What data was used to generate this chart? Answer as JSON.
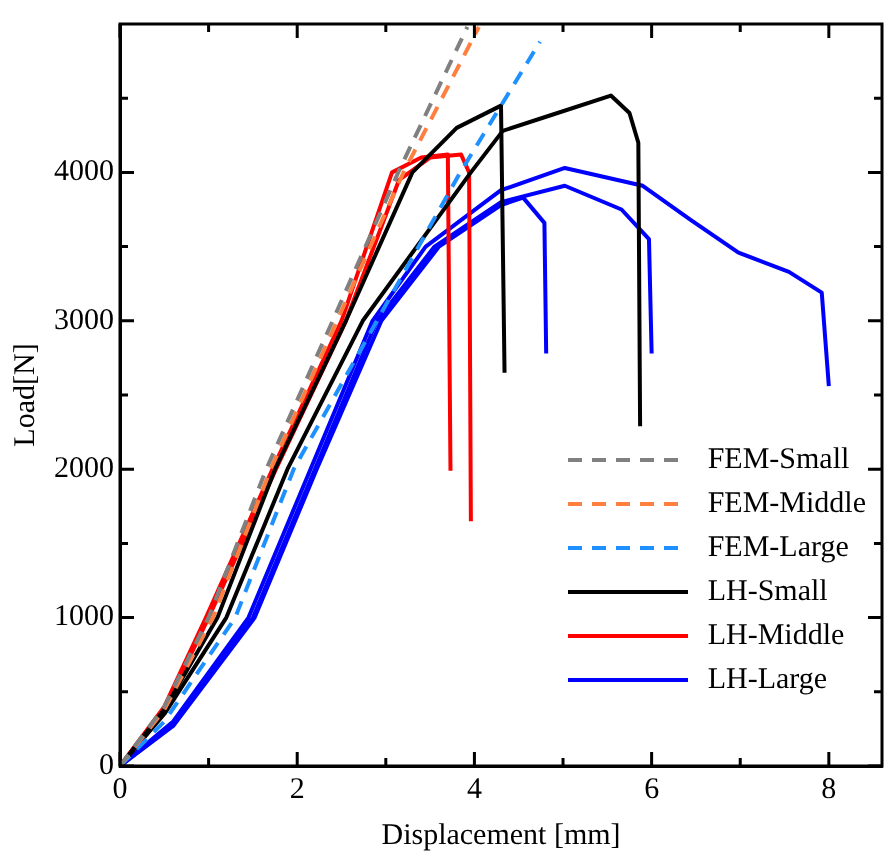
{
  "chart_data": {
    "type": "line",
    "xlabel": "Displacement [mm]",
    "ylabel": "Load[N]",
    "xlim": [
      0,
      8.6
    ],
    "ylim": [
      0,
      5000
    ],
    "xticks": [
      0,
      {
        "value": 1,
        "label": null
      },
      2,
      {
        "value": 3,
        "label": null
      },
      4,
      {
        "value": 5,
        "label": null
      },
      6,
      {
        "value": 7,
        "label": null
      },
      8
    ],
    "yticks": [
      0,
      {
        "value": 500,
        "label": null
      },
      1000,
      {
        "value": 1500,
        "label": null
      },
      2000,
      {
        "value": 2500,
        "label": null
      },
      3000,
      {
        "value": 3500,
        "label": null
      },
      4000,
      {
        "value": 4500,
        "label": null
      }
    ],
    "grid": false,
    "legend": "bottom right",
    "marker": "none",
    "series": [
      {
        "name": "FEM-Small",
        "color": "#808080",
        "line_style": "dashed",
        "x": [
          0,
          0.5,
          1.0,
          1.65,
          2.4,
          3.14,
          3.92
        ],
        "values": [
          0,
          400,
          1000,
          2000,
          3000,
          4000,
          4980
        ]
      },
      {
        "name": "FEM-Middle",
        "color": "#ff7f3f",
        "line_style": "dashed",
        "x": [
          0,
          0.5,
          1.05,
          1.7,
          2.45,
          3.2,
          4.05
        ],
        "values": [
          0,
          380,
          1000,
          2000,
          3000,
          4000,
          4980
        ]
      },
      {
        "name": "FEM-Large",
        "color": "#1e90ff",
        "line_style": "dashed",
        "x": [
          0,
          0.5,
          1.3,
          1.96,
          2.9,
          3.84,
          4.74
        ],
        "values": [
          0,
          300,
          1000,
          2000,
          3000,
          4000,
          4880
        ]
      },
      {
        "name": "LH-Small",
        "color": "#000000",
        "line_style": "solid",
        "x": [
          0,
          0.5,
          1.2,
          1.89,
          2.74,
          3.96,
          4.32,
          4.86,
          5.54,
          5.75,
          5.85,
          5.87
        ],
        "values": [
          0,
          350,
          1000,
          2000,
          3000,
          4000,
          4280,
          4385,
          4518,
          4400,
          4200,
          2290
        ]
      },
      {
        "color": "#000000",
        "line_style": "solid",
        "x": [
          0,
          0.5,
          1.1,
          1.75,
          2.55,
          3.3,
          3.8,
          4.3,
          4.34
        ],
        "values": [
          0,
          380,
          1000,
          2000,
          3000,
          4000,
          4300,
          4450,
          2650
        ]
      },
      {
        "name": "LH-Middle",
        "color": "#ff0000",
        "line_style": "solid",
        "x": [
          0,
          0.5,
          0.97,
          1.72,
          2.5,
          3.07,
          3.4,
          3.7,
          3.73
        ],
        "values": [
          0,
          400,
          1000,
          2000,
          3000,
          4000,
          4100,
          4120,
          1990
        ]
      },
      {
        "color": "#ff0000",
        "line_style": "solid",
        "x": [
          0,
          0.5,
          1.0,
          1.76,
          2.55,
          3.15,
          3.5,
          3.85,
          3.94,
          3.96
        ],
        "values": [
          0,
          380,
          1000,
          2000,
          3000,
          3950,
          4100,
          4120,
          4000,
          1650
        ]
      },
      {
        "name": "LH-Large",
        "color": "#0000ff",
        "line_style": "solid",
        "x": [
          0,
          0.6,
          1.45,
          2.15,
          2.85,
          3.45,
          4.3,
          5.02,
          5.9,
          6.44,
          6.98,
          7.55,
          7.92,
          8.0
        ],
        "values": [
          0,
          300,
          1000,
          2000,
          3000,
          3500,
          3880,
          4030,
          3910,
          3680,
          3460,
          3330,
          3190,
          2560
        ]
      },
      {
        "color": "#0000ff",
        "line_style": "solid",
        "x": [
          0,
          0.6,
          1.5,
          2.2,
          2.9,
          3.55,
          4.3,
          5.02,
          5.66,
          5.97,
          6.0
        ],
        "values": [
          0,
          280,
          1000,
          2000,
          3000,
          3500,
          3800,
          3910,
          3750,
          3550,
          2780
        ]
      },
      {
        "color": "#0000ff",
        "line_style": "solid",
        "x": [
          0,
          0.6,
          1.52,
          2.22,
          2.95,
          3.6,
          4.3,
          4.55,
          4.79,
          4.81
        ],
        "values": [
          0,
          270,
          1000,
          2000,
          3000,
          3500,
          3780,
          3830,
          3660,
          2780
        ]
      }
    ]
  }
}
